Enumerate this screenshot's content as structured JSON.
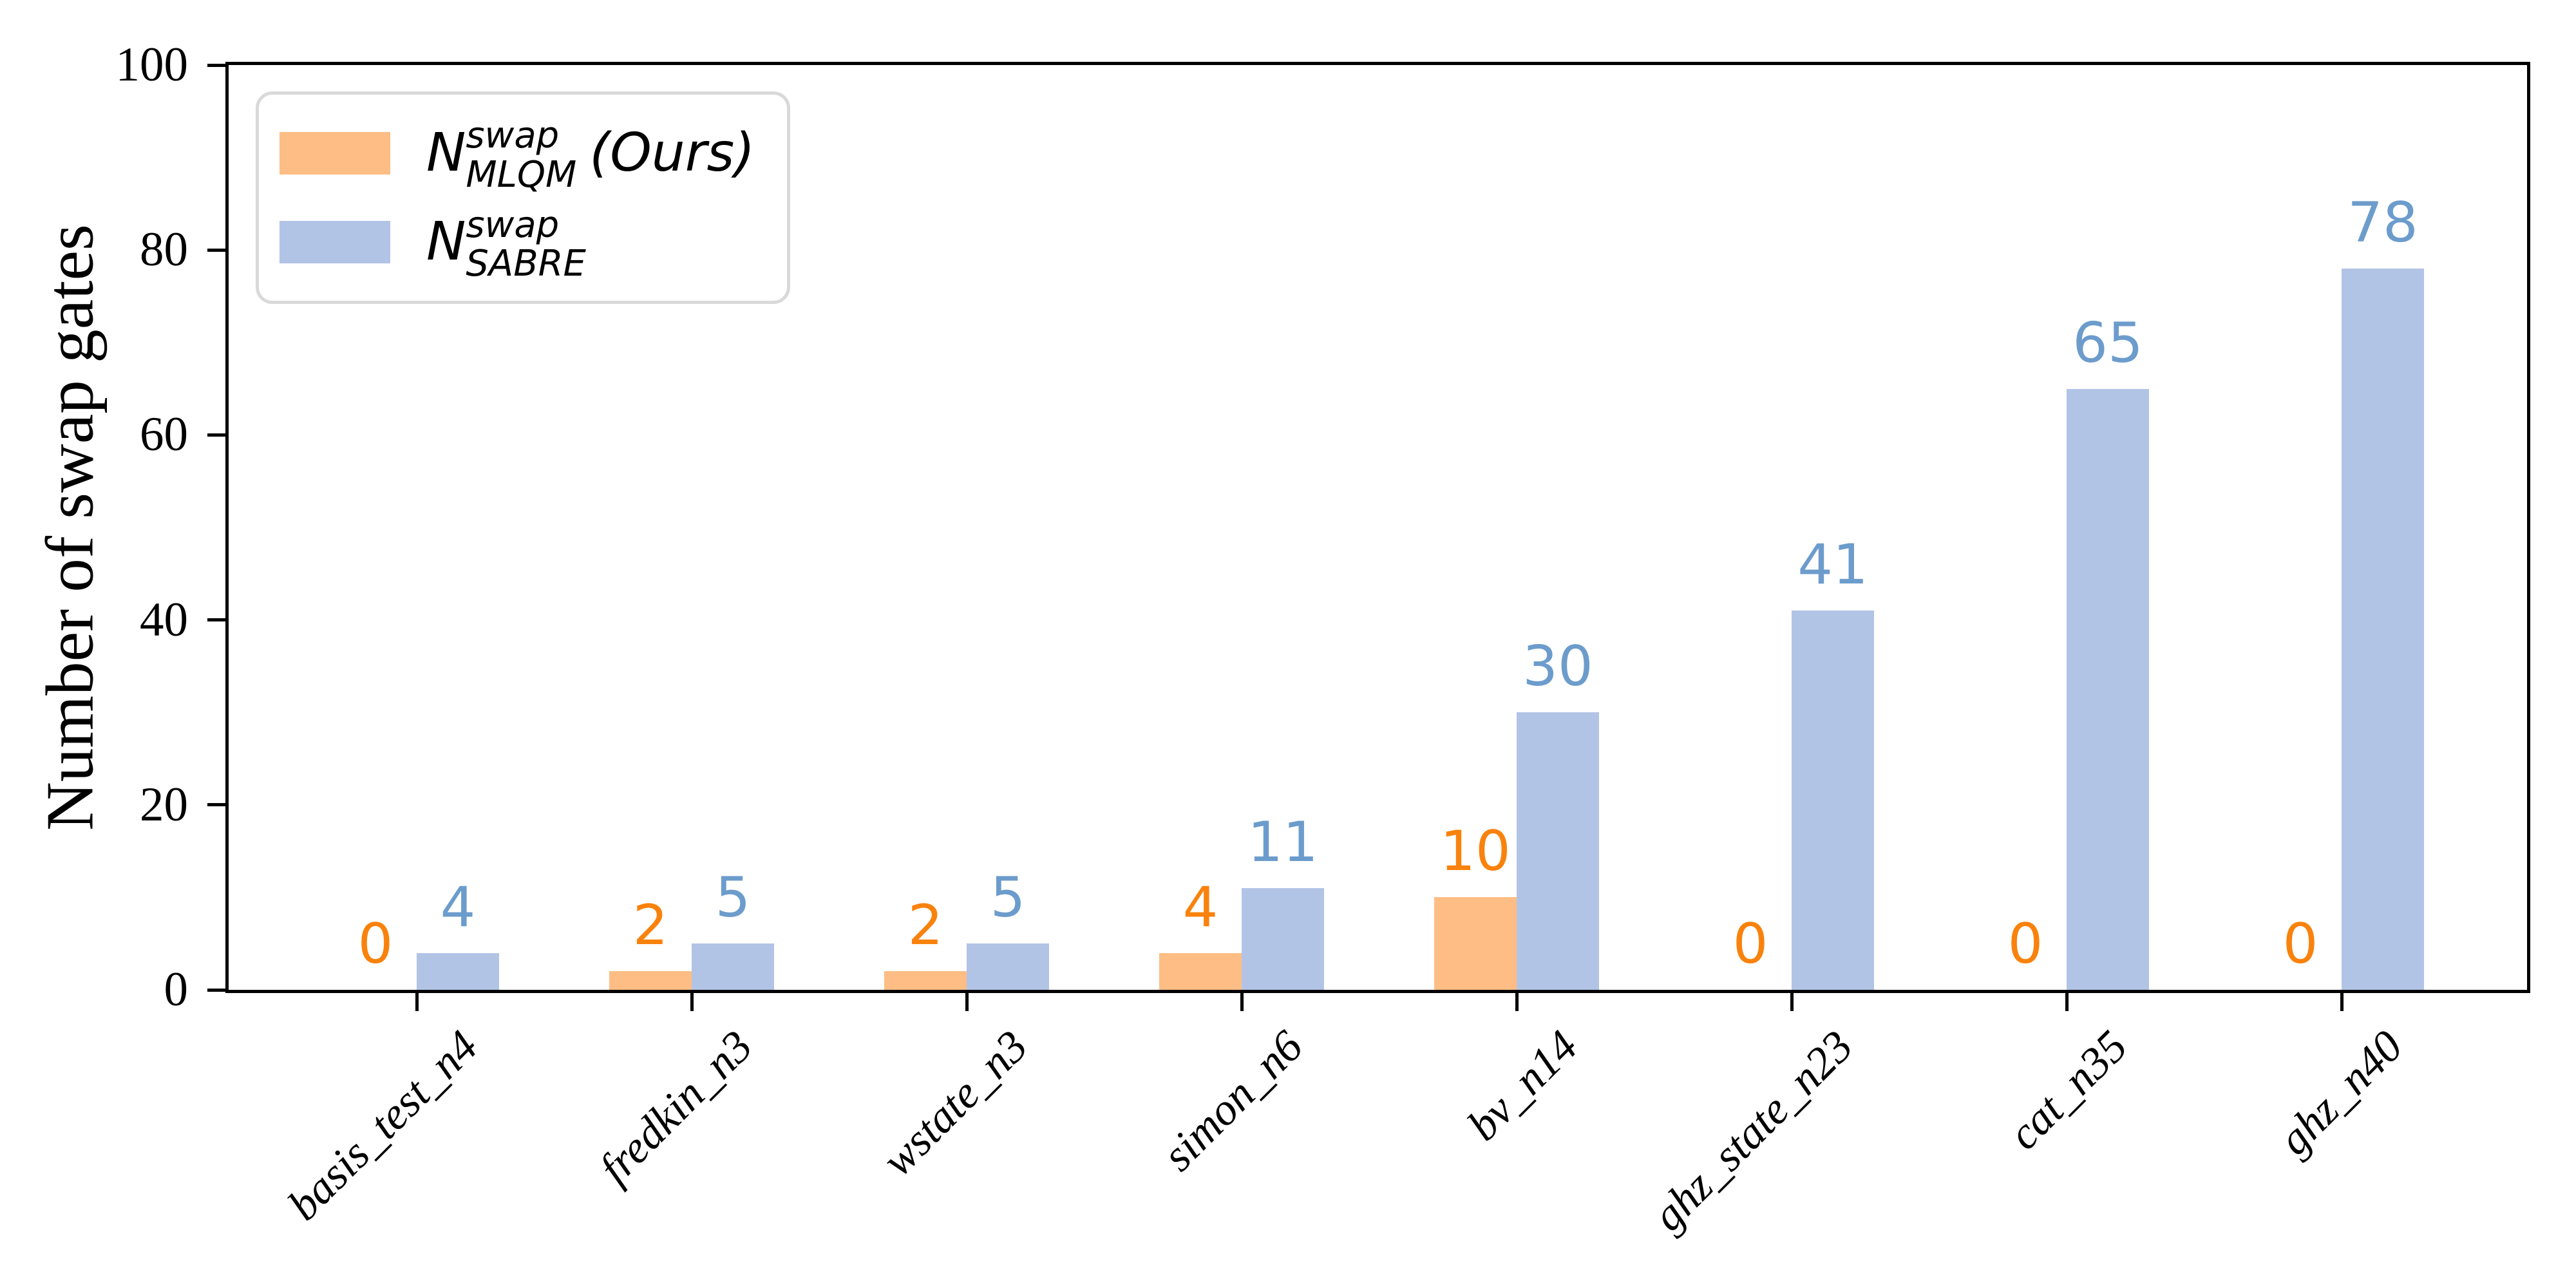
{
  "chart_data": {
    "type": "bar",
    "title": "",
    "categories": [
      "basis_test_n4",
      "fredkin_n3",
      "wstate_n3",
      "simon_n6",
      "bv_n14",
      "ghz_state_n23",
      "cat_n35",
      "ghz_n40"
    ],
    "series": [
      {
        "name": "N_MLQM^swap (Ours)",
        "key": "mlqm",
        "values": [
          0,
          2,
          2,
          4,
          10,
          0,
          0,
          0
        ],
        "bar_color": "#FDBD84",
        "label_color": "#F9820D"
      },
      {
        "name": "N_SABRE^swap",
        "key": "sabre",
        "values": [
          4,
          5,
          5,
          11,
          30,
          41,
          65,
          78
        ],
        "bar_color": "#B2C4E5",
        "label_color": "#6C9CCC"
      }
    ],
    "xlabel": "",
    "ylabel": "Number of swap gates",
    "ylim": [
      0,
      100
    ],
    "yticks": [
      "0",
      "20",
      "40",
      "60",
      "80",
      "100"
    ],
    "grid": false,
    "legend_position": "upper left",
    "bar_value_labels": true
  },
  "legend": {
    "items": [
      {
        "symbol": "N",
        "sup": "swap",
        "sub": "MLQM",
        "suffix": "(Ours)"
      },
      {
        "symbol": "N",
        "sup": "swap",
        "sub": "SABRE",
        "suffix": ""
      }
    ]
  }
}
